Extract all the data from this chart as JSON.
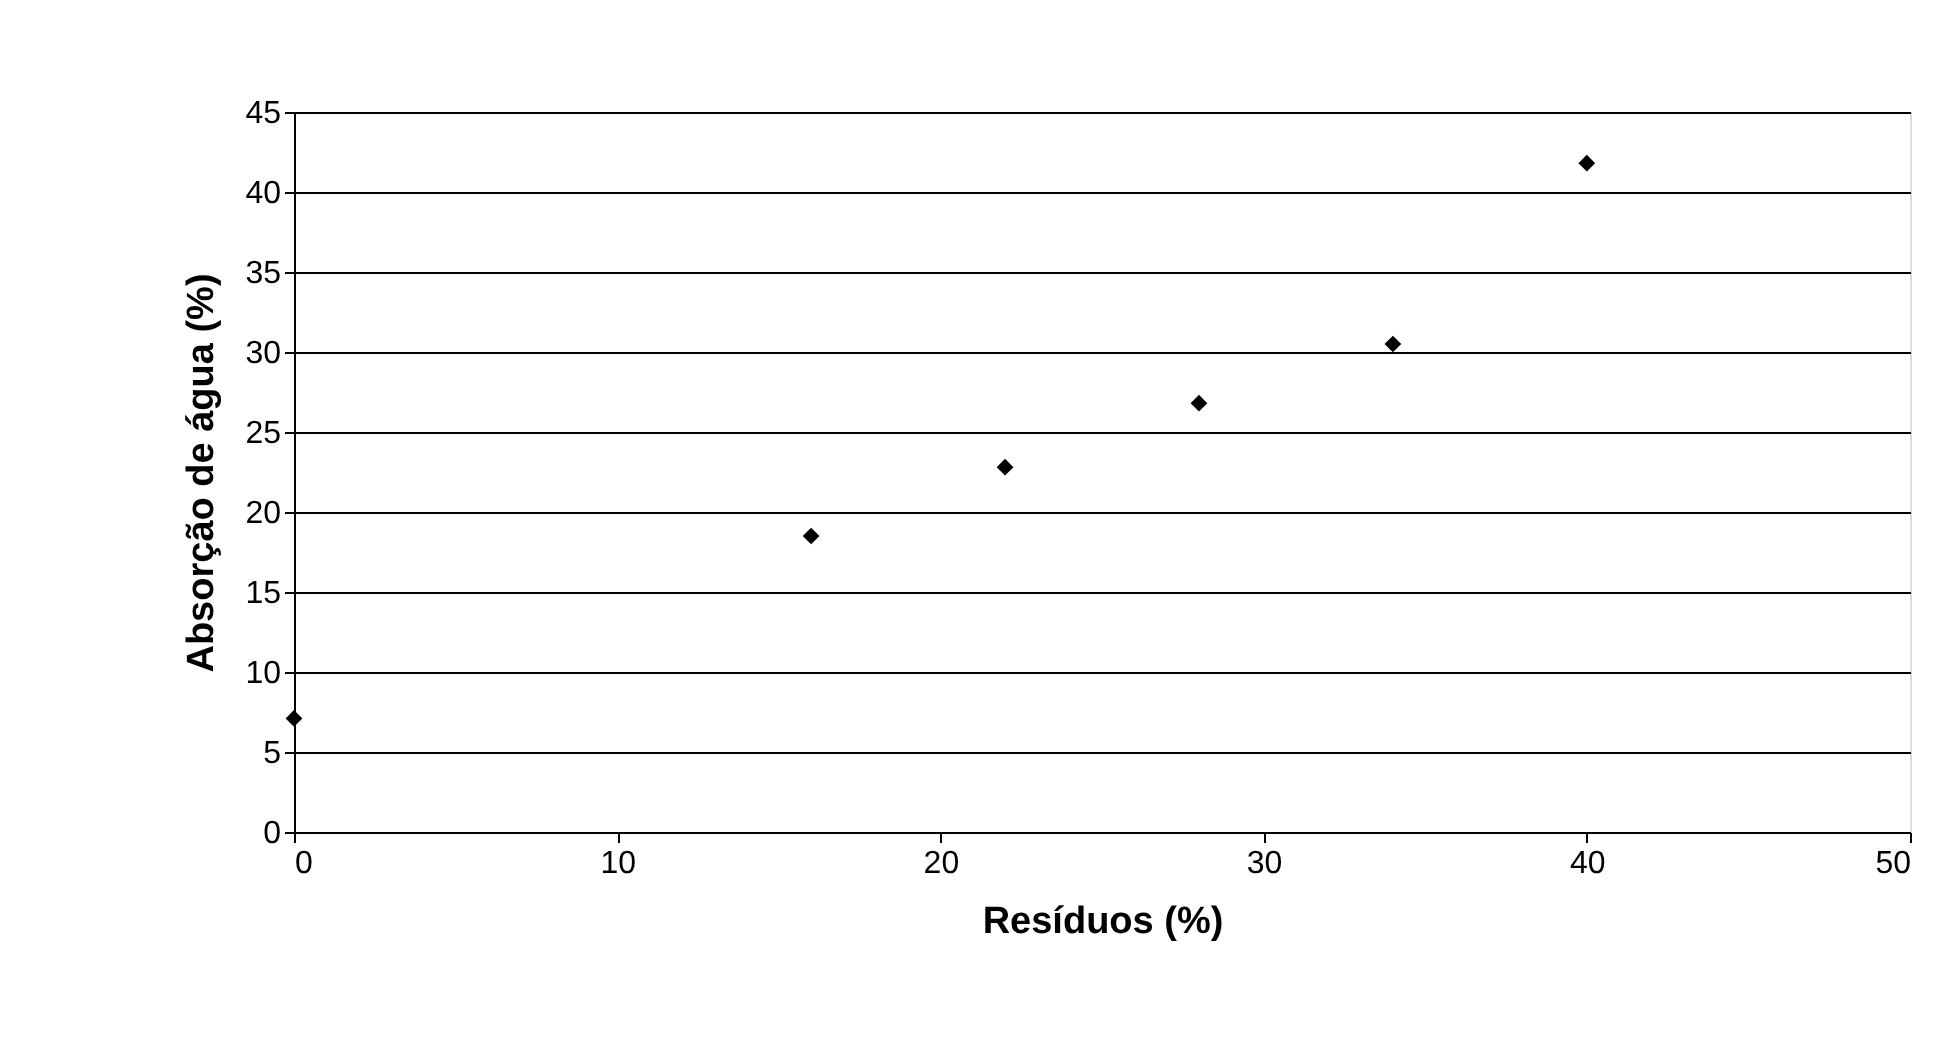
{
  "chart_data": {
    "type": "scatter",
    "xlabel": "Resíduos (%)",
    "ylabel": "Absorção de água (%)",
    "x": [
      0,
      16,
      22,
      28,
      34,
      40
    ],
    "values": [
      7.1,
      18.5,
      22.8,
      26.8,
      30.5,
      41.8
    ],
    "color": "#000000",
    "marker": "diamond",
    "xlim": [
      0,
      50
    ],
    "xticks": [
      0,
      10,
      20,
      30,
      40,
      50
    ],
    "ylim": [
      0,
      45
    ],
    "yticks": [
      0,
      5,
      10,
      15,
      20,
      25,
      30,
      35,
      40,
      45
    ],
    "grid": "y"
  }
}
